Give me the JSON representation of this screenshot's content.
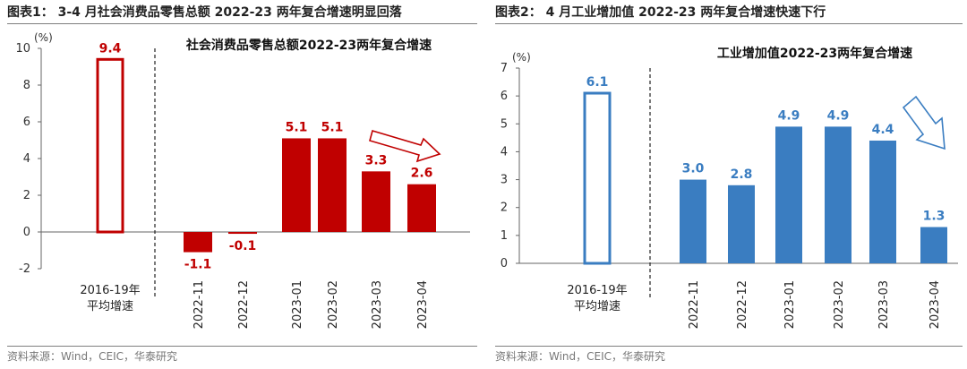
{
  "left": {
    "title": "图表1： 3-4 月社会消费品零售总额 2022-23 两年复合增速明显回落",
    "source": "资料来源：Wind，CEIC，华泰研究"
  },
  "right": {
    "title": "图表2： 4 月工业增加值 2022-23 两年复合增速快速下行",
    "source": "资料来源：Wind，CEIC，华泰研究"
  },
  "chart_data": [
    {
      "type": "bar",
      "title": "社会消费品零售总额2022-23两年复合增速",
      "ylabel": "(%)",
      "ylim": [
        -2,
        10
      ],
      "yticks": [
        -2,
        0,
        2,
        4,
        6,
        8,
        10
      ],
      "categories": [
        "2016-19年平均增速",
        "2022-11",
        "2022-12",
        "2023-01",
        "2023-02",
        "2023-03",
        "2023-04"
      ],
      "values": [
        9.4,
        -1.1,
        -0.1,
        5.1,
        5.1,
        3.3,
        2.6
      ],
      "data_labels": [
        "9.4",
        "-1.1",
        "-0.1",
        "5.1",
        "5.1",
        "3.3",
        "2.6"
      ],
      "baseline_label_lines": [
        "2016-19年",
        "平均增速"
      ],
      "color": "#C00000",
      "annotation": "down-right arrow after 2023-02 indicating decline"
    },
    {
      "type": "bar",
      "title": "工业增加值2022-23两年复合增速",
      "ylabel": "(%)",
      "ylim": [
        0,
        7
      ],
      "yticks": [
        0,
        1,
        2,
        3,
        4,
        5,
        6,
        7
      ],
      "categories": [
        "2016-19年平均增速",
        "2022-11",
        "2022-12",
        "2023-01",
        "2023-02",
        "2023-03",
        "2023-04"
      ],
      "values": [
        6.1,
        3.0,
        2.8,
        4.9,
        4.9,
        4.4,
        1.3
      ],
      "data_labels": [
        "6.1",
        "3.0",
        "2.8",
        "4.9",
        "4.9",
        "4.4",
        "1.3"
      ],
      "baseline_label_lines": [
        "2016-19年",
        "平均增速"
      ],
      "color": "#3A7DC1",
      "annotation": "down-right arrow after 2023-02 indicating decline"
    }
  ]
}
